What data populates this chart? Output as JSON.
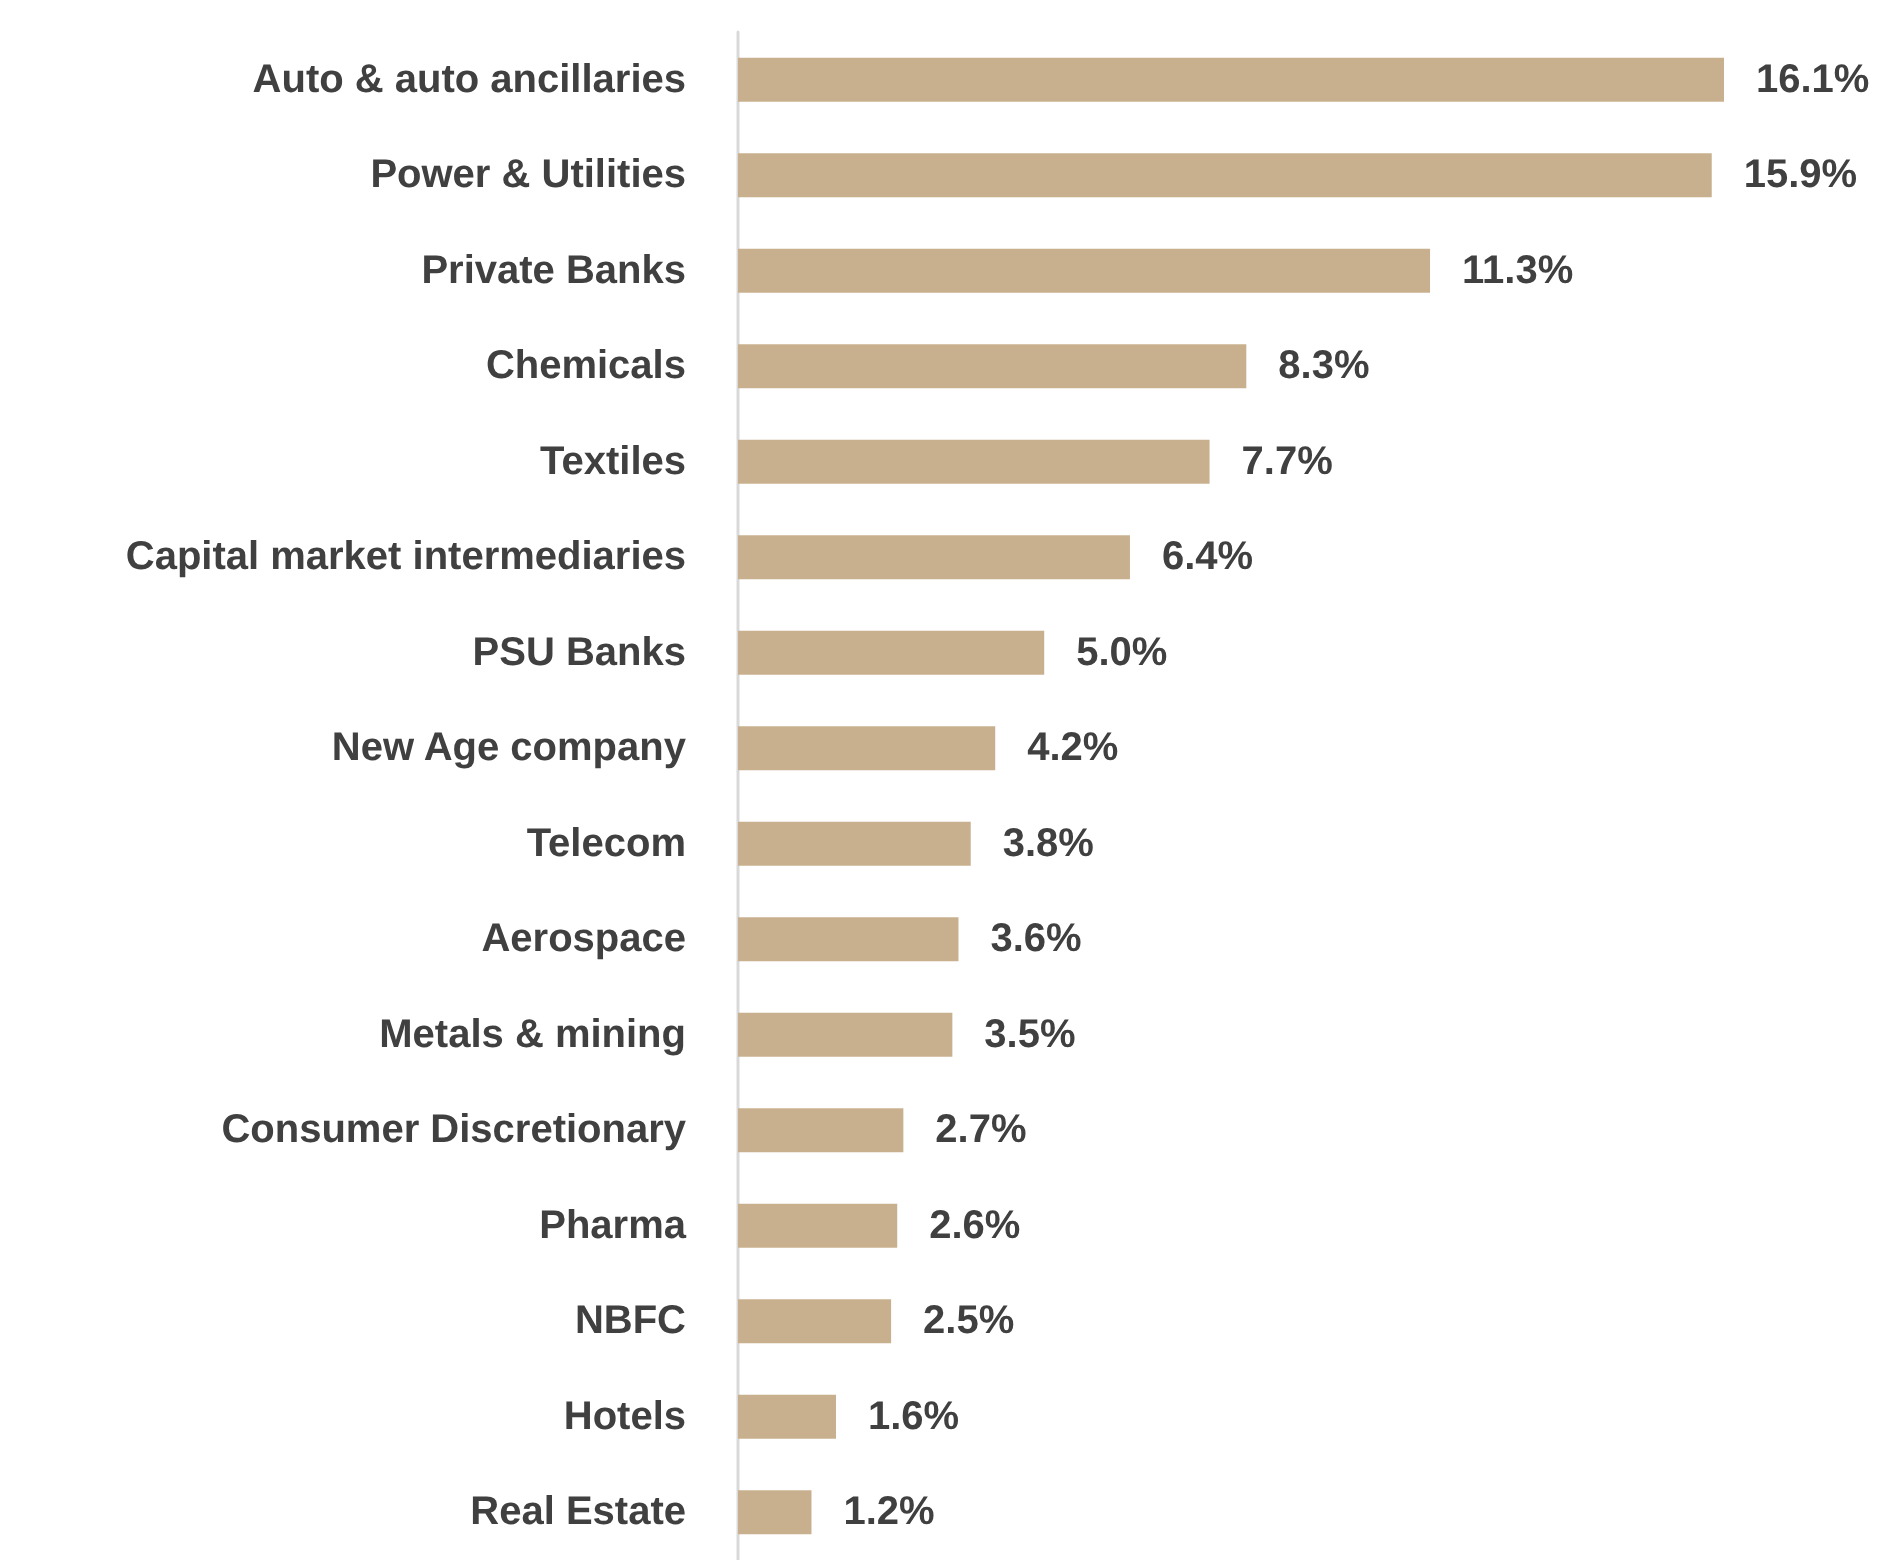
{
  "chart_data": {
    "type": "bar",
    "orientation": "horizontal",
    "categories": [
      "Auto & auto ancillaries",
      "Power & Utilities",
      "Private Banks",
      "Chemicals",
      "Textiles",
      "Capital market intermediaries",
      "PSU Banks",
      "New Age company",
      "Telecom",
      "Aerospace",
      "Metals & mining",
      "Consumer Discretionary",
      "Pharma",
      "NBFC",
      "Hotels",
      "Real Estate"
    ],
    "values": [
      16.1,
      15.9,
      11.3,
      8.3,
      7.7,
      6.4,
      5.0,
      4.2,
      3.8,
      3.6,
      3.5,
      2.7,
      2.6,
      2.5,
      1.6,
      1.2
    ],
    "value_labels": [
      "16.1%",
      "15.9%",
      "11.3%",
      "8.3%",
      "7.7%",
      "6.4%",
      "5.0%",
      "4.2%",
      "3.8%",
      "3.6%",
      "3.5%",
      "2.7%",
      "2.6%",
      "2.5%",
      "1.6%",
      "1.2%"
    ],
    "color": "#c8b08f"
  }
}
